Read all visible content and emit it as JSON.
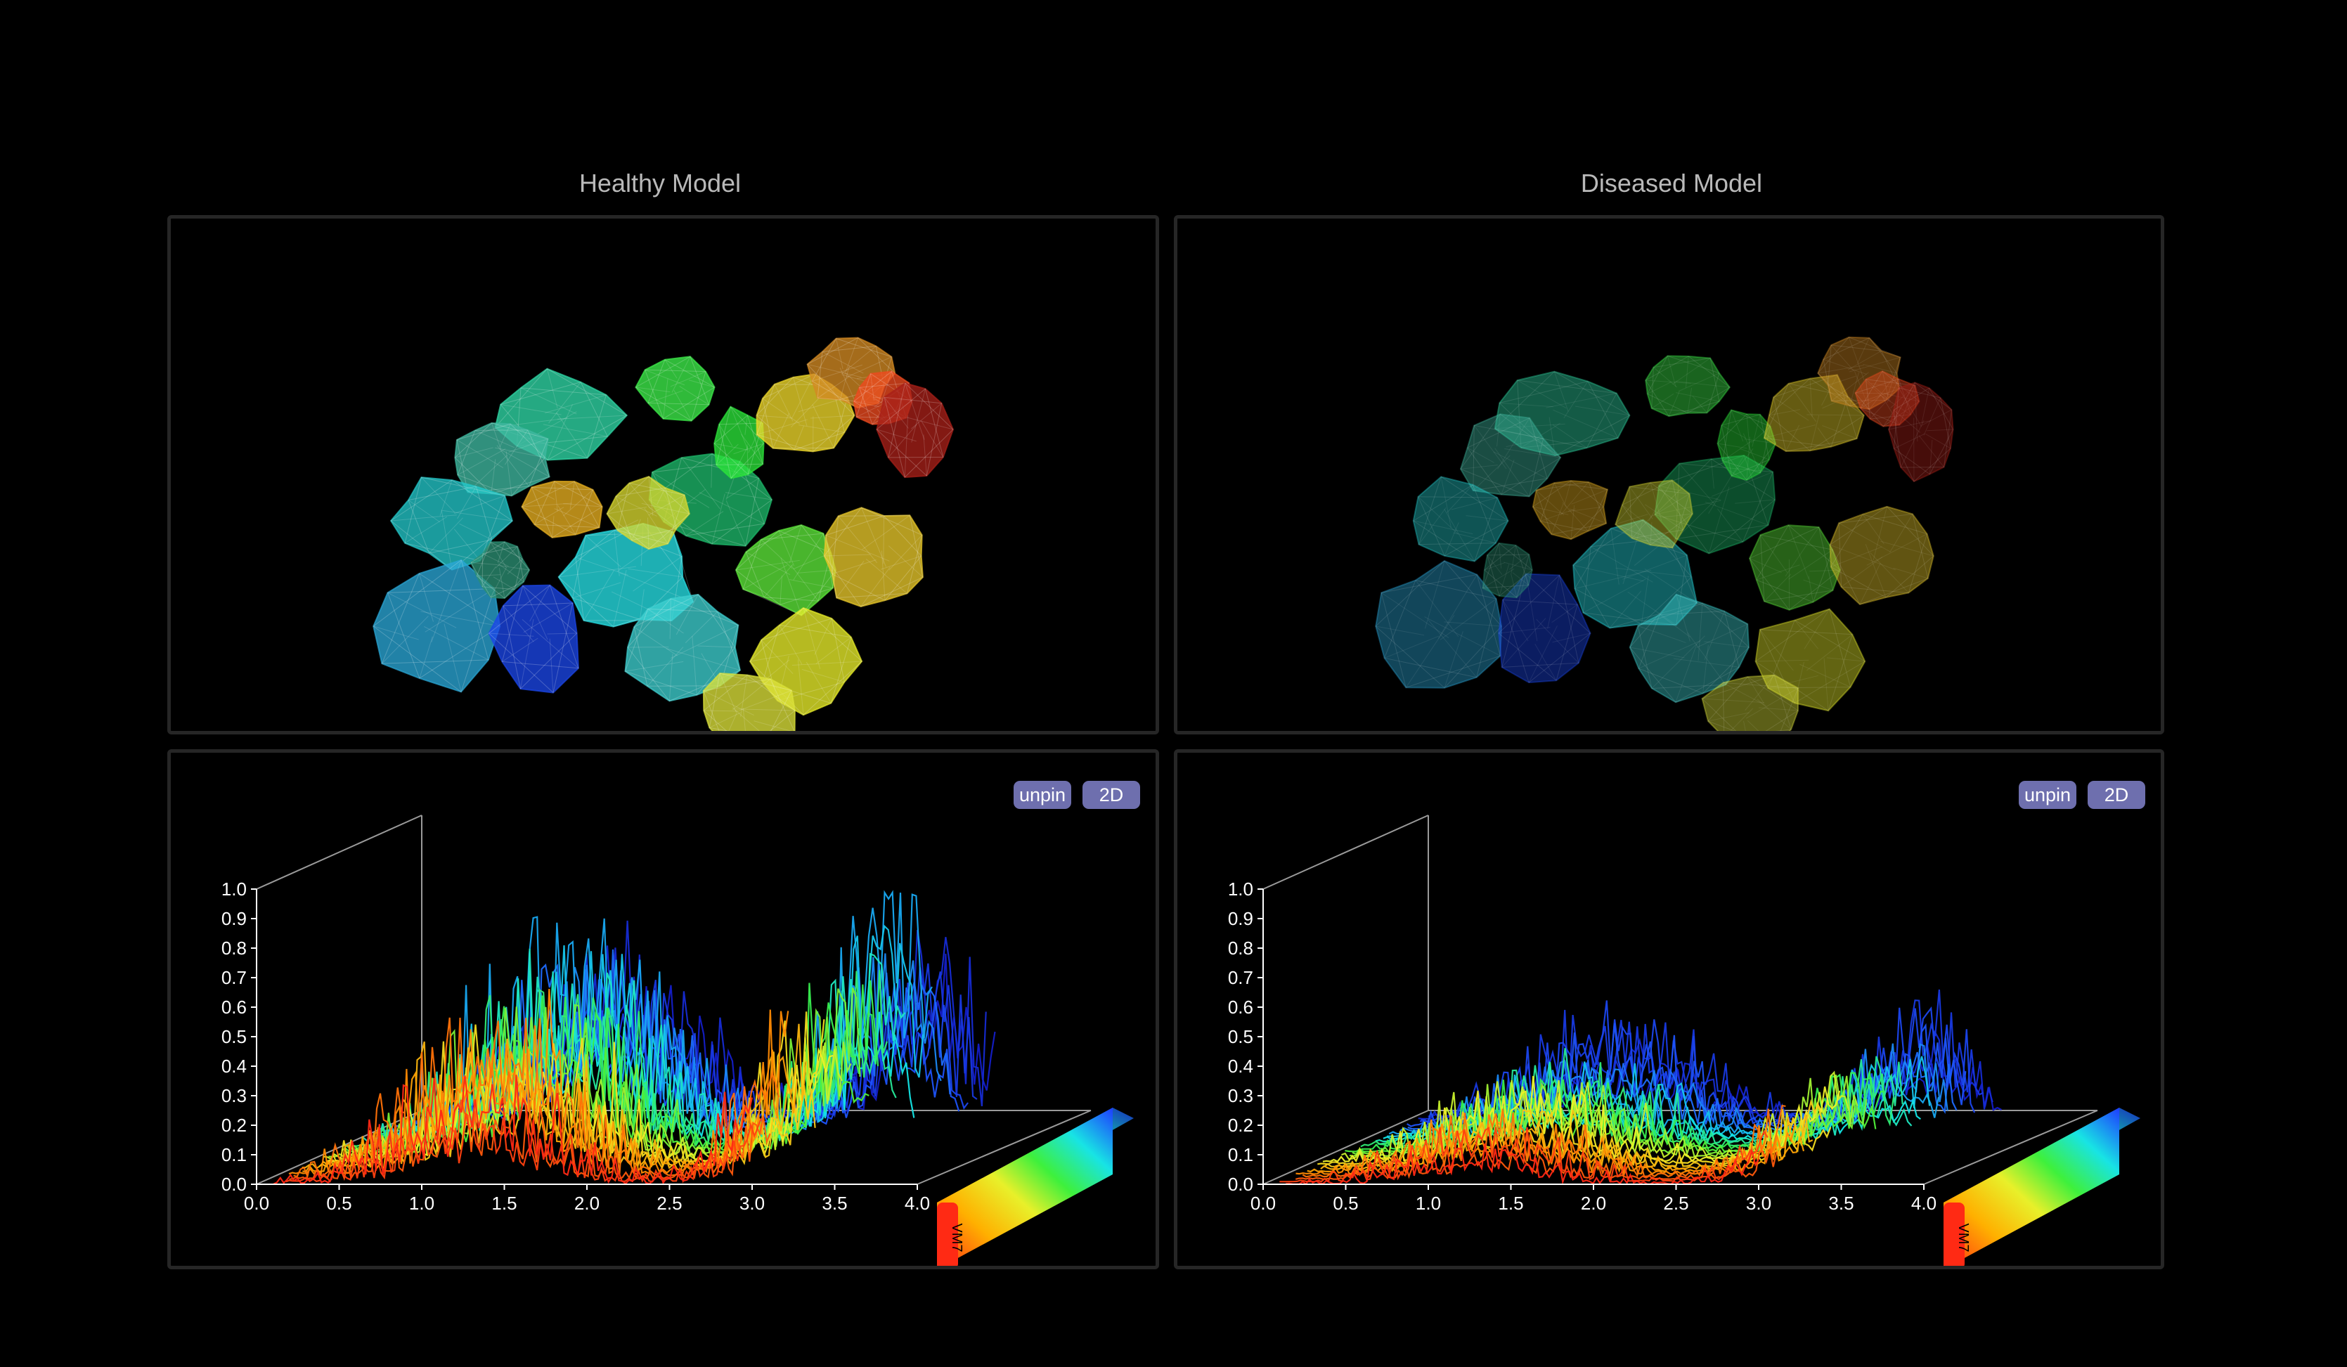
{
  "columns": [
    {
      "id": "healthy",
      "title": "Healthy Model",
      "controls": {
        "unpin_label": "unpin",
        "mode_label": "2D"
      },
      "colorbar_label": "VM7",
      "amplitude": 1.0,
      "cell_opacity": 0.78
    },
    {
      "id": "diseased",
      "title": "Diseased Model",
      "controls": {
        "unpin_label": "unpin",
        "mode_label": "2D"
      },
      "colorbar_label": "VM7",
      "amplitude": 0.32,
      "cell_opacity": 0.42
    }
  ],
  "chart_data": [
    {
      "type": "line",
      "title": "",
      "xlabel": "",
      "ylabel": "",
      "x_ticks": [
        "0.0",
        "0.5",
        "1.0",
        "1.5",
        "2.0",
        "2.5",
        "3.0",
        "3.5",
        "4.0"
      ],
      "y_ticks": [
        "0.0",
        "0.1",
        "0.2",
        "0.3",
        "0.4",
        "0.5",
        "0.6",
        "0.7",
        "0.8",
        "0.9",
        "1.0"
      ],
      "xlim": [
        0,
        4
      ],
      "ylim": [
        0,
        1
      ],
      "series_count": 28,
      "peak_max": 1.0
    },
    {
      "type": "line",
      "title": "",
      "xlabel": "",
      "ylabel": "",
      "x_ticks": [
        "0.0",
        "0.5",
        "1.0",
        "1.5",
        "2.0",
        "2.5",
        "3.0",
        "3.5",
        "4.0"
      ],
      "y_ticks": [
        "0.0",
        "0.1",
        "0.2",
        "0.3",
        "0.4",
        "0.5",
        "0.6",
        "0.7",
        "0.8",
        "0.9",
        "1.0"
      ],
      "xlim": [
        0,
        4
      ],
      "ylim": [
        0,
        1
      ],
      "series_count": 28,
      "peak_max": 0.45
    }
  ],
  "colors": {
    "panel_border": "#262626",
    "button_bg": "#6e6fae",
    "title_text": "#b9b9b9",
    "axis": "#ffffff"
  }
}
